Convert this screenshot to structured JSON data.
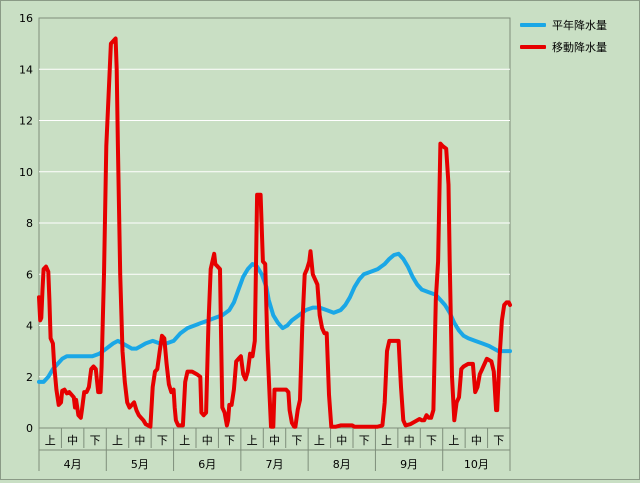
{
  "chart_data": {
    "type": "line",
    "title": "",
    "xlabel": "",
    "ylabel": "",
    "ylim": [
      0,
      16
    ],
    "yticks": [
      "0",
      "2",
      "4",
      "6",
      "8",
      "10",
      "12",
      "14",
      "16"
    ],
    "grid": true,
    "legend_position": "top-right",
    "months": [
      "4月",
      "5月",
      "6月",
      "7月",
      "8月",
      "9月",
      "10月"
    ],
    "decades": [
      "上",
      "中",
      "下"
    ],
    "series": [
      {
        "name": "平年降水量",
        "color": "#1aa7e6",
        "points": [
          [
            0,
            1.8
          ],
          [
            4,
            1.8
          ],
          [
            8,
            2
          ],
          [
            12,
            2.3
          ],
          [
            16,
            2.5
          ],
          [
            20,
            2.7
          ],
          [
            24,
            2.8
          ],
          [
            32,
            2.8
          ],
          [
            40,
            2.8
          ],
          [
            46,
            2.8
          ],
          [
            52,
            2.9
          ],
          [
            58,
            3.1
          ],
          [
            64,
            3.3
          ],
          [
            68,
            3.4
          ],
          [
            72,
            3.3
          ],
          [
            76,
            3.2
          ],
          [
            80,
            3.1
          ],
          [
            84,
            3.1
          ],
          [
            88,
            3.2
          ],
          [
            92,
            3.3
          ],
          [
            98,
            3.4
          ],
          [
            104,
            3.3
          ],
          [
            110,
            3.3
          ],
          [
            116,
            3.4
          ],
          [
            122,
            3.7
          ],
          [
            128,
            3.9
          ],
          [
            134,
            4
          ],
          [
            140,
            4.1
          ],
          [
            146,
            4.2
          ],
          [
            152,
            4.3
          ],
          [
            158,
            4.4
          ],
          [
            164,
            4.6
          ],
          [
            168,
            4.9
          ],
          [
            172,
            5.4
          ],
          [
            176,
            5.9
          ],
          [
            180,
            6.2
          ],
          [
            184,
            6.4
          ],
          [
            188,
            6.3
          ],
          [
            192,
            6
          ],
          [
            196,
            5.5
          ],
          [
            198,
            5
          ],
          [
            202,
            4.4
          ],
          [
            206,
            4.1
          ],
          [
            210,
            3.9
          ],
          [
            214,
            4
          ],
          [
            218,
            4.2
          ],
          [
            224,
            4.4
          ],
          [
            230,
            4.6
          ],
          [
            236,
            4.7
          ],
          [
            242,
            4.7
          ],
          [
            248,
            4.6
          ],
          [
            254,
            4.5
          ],
          [
            260,
            4.6
          ],
          [
            264,
            4.8
          ],
          [
            268,
            5.1
          ],
          [
            272,
            5.5
          ],
          [
            276,
            5.8
          ],
          [
            280,
            6
          ],
          [
            286,
            6.1
          ],
          [
            292,
            6.2
          ],
          [
            298,
            6.4
          ],
          [
            302,
            6.6
          ],
          [
            306,
            6.75
          ],
          [
            310,
            6.8
          ],
          [
            314,
            6.6
          ],
          [
            318,
            6.3
          ],
          [
            322,
            5.9
          ],
          [
            326,
            5.6
          ],
          [
            330,
            5.4
          ],
          [
            336,
            5.3
          ],
          [
            342,
            5.2
          ],
          [
            346,
            5
          ],
          [
            350,
            4.8
          ],
          [
            354,
            4.5
          ],
          [
            358,
            4.1
          ],
          [
            362,
            3.8
          ],
          [
            366,
            3.6
          ],
          [
            370,
            3.5
          ],
          [
            376,
            3.4
          ],
          [
            382,
            3.3
          ],
          [
            388,
            3.2
          ],
          [
            392,
            3.1
          ],
          [
            396,
            3
          ],
          [
            402,
            3
          ],
          [
            406,
            3
          ]
        ]
      },
      {
        "name": "移動降水量",
        "color": "#e60000",
        "points": [
          [
            0,
            5.1
          ],
          [
            1,
            4.2
          ],
          [
            2,
            4.3
          ],
          [
            3,
            5.4
          ],
          [
            4,
            6.2
          ],
          [
            6,
            6.3
          ],
          [
            8,
            6.1
          ],
          [
            9,
            5
          ],
          [
            10,
            3.5
          ],
          [
            12,
            3.3
          ],
          [
            13,
            2.5
          ],
          [
            15,
            1.5
          ],
          [
            17,
            0.9
          ],
          [
            19,
            1
          ],
          [
            20,
            1.45
          ],
          [
            22,
            1.5
          ],
          [
            24,
            1.35
          ],
          [
            26,
            1.4
          ],
          [
            28,
            1.3
          ],
          [
            30,
            1.2
          ],
          [
            31,
            0.8
          ],
          [
            32,
            1.1
          ],
          [
            34,
            0.5
          ],
          [
            36,
            0.4
          ],
          [
            37,
            0.7
          ],
          [
            39,
            1.4
          ],
          [
            41,
            1.4
          ],
          [
            43,
            1.6
          ],
          [
            45,
            2.3
          ],
          [
            47,
            2.4
          ],
          [
            49,
            2.3
          ],
          [
            51,
            1.4
          ],
          [
            53,
            1.4
          ],
          [
            54,
            2.4
          ],
          [
            56,
            6
          ],
          [
            58,
            11
          ],
          [
            60,
            13
          ],
          [
            62,
            15
          ],
          [
            64,
            15.1
          ],
          [
            66,
            15.2
          ],
          [
            67,
            14
          ],
          [
            68,
            11
          ],
          [
            70,
            6
          ],
          [
            72,
            3
          ],
          [
            74,
            1.8
          ],
          [
            76,
            1
          ],
          [
            78,
            0.8
          ],
          [
            80,
            0.9
          ],
          [
            82,
            1
          ],
          [
            84,
            0.7
          ],
          [
            86,
            0.5
          ],
          [
            88,
            0.4
          ],
          [
            90,
            0.3
          ],
          [
            92,
            0.15
          ],
          [
            94,
            0.1
          ],
          [
            96,
            0.05
          ],
          [
            98,
            1.6
          ],
          [
            100,
            2.2
          ],
          [
            102,
            2.3
          ],
          [
            104,
            3
          ],
          [
            106,
            3.6
          ],
          [
            108,
            3.5
          ],
          [
            110,
            2.5
          ],
          [
            112,
            1.7
          ],
          [
            114,
            1.4
          ],
          [
            116,
            1.5
          ],
          [
            117,
            0.8
          ],
          [
            118,
            0.3
          ],
          [
            120,
            0.1
          ],
          [
            124,
            0.1
          ],
          [
            126,
            1.8
          ],
          [
            128,
            2.2
          ],
          [
            132,
            2.2
          ],
          [
            136,
            2.1
          ],
          [
            139,
            2
          ],
          [
            140,
            0.6
          ],
          [
            142,
            0.5
          ],
          [
            144,
            0.6
          ],
          [
            146,
            4
          ],
          [
            148,
            6.2
          ],
          [
            150,
            6.6
          ],
          [
            151,
            6.8
          ],
          [
            152,
            6.4
          ],
          [
            156,
            6.2
          ],
          [
            157,
            3.5
          ],
          [
            158,
            0.8
          ],
          [
            160,
            0.6
          ],
          [
            162,
            0.1
          ],
          [
            163,
            0.3
          ],
          [
            164,
            0.9
          ],
          [
            166,
            0.9
          ],
          [
            168,
            1.5
          ],
          [
            170,
            2.6
          ],
          [
            172,
            2.7
          ],
          [
            174,
            2.8
          ],
          [
            176,
            2.1
          ],
          [
            178,
            1.9
          ],
          [
            180,
            2.2
          ],
          [
            182,
            2.9
          ],
          [
            184,
            2.8
          ],
          [
            186,
            3.4
          ],
          [
            188,
            9.1
          ],
          [
            191,
            9.1
          ],
          [
            193,
            6.5
          ],
          [
            195,
            6.4
          ],
          [
            197,
            3.1
          ],
          [
            199,
            1
          ],
          [
            200,
            0.05
          ],
          [
            202,
            0.05
          ],
          [
            203,
            1.5
          ],
          [
            205,
            1.5
          ],
          [
            208,
            1.5
          ],
          [
            213,
            1.5
          ],
          [
            215,
            1.4
          ],
          [
            216,
            0.7
          ],
          [
            218,
            0.2
          ],
          [
            220,
            0.05
          ],
          [
            221,
            0.05
          ],
          [
            223,
            0.7
          ],
          [
            225,
            1.1
          ],
          [
            227,
            4
          ],
          [
            229,
            6
          ],
          [
            231,
            6.2
          ],
          [
            233,
            6.5
          ],
          [
            234,
            6.9
          ],
          [
            236,
            6
          ],
          [
            238,
            5.8
          ],
          [
            240,
            5.6
          ],
          [
            242,
            4.4
          ],
          [
            244,
            3.9
          ],
          [
            246,
            3.7
          ],
          [
            248,
            3.7
          ],
          [
            250,
            1.3
          ],
          [
            252,
            0.05
          ],
          [
            256,
            0.05
          ],
          [
            260,
            0.1
          ],
          [
            264,
            0.1
          ],
          [
            268,
            0.1
          ],
          [
            270,
            0.1
          ],
          [
            272,
            0.05
          ],
          [
            276,
            0.05
          ],
          [
            280,
            0.05
          ],
          [
            286,
            0.05
          ],
          [
            292,
            0.05
          ],
          [
            296,
            0.1
          ],
          [
            298,
            1
          ],
          [
            300,
            3
          ],
          [
            302,
            3.4
          ],
          [
            306,
            3.4
          ],
          [
            310,
            3.4
          ],
          [
            312,
            1.6
          ],
          [
            314,
            0.3
          ],
          [
            316,
            0.1
          ],
          [
            320,
            0.15
          ],
          [
            324,
            0.25
          ],
          [
            328,
            0.35
          ],
          [
            330,
            0.3
          ],
          [
            332,
            0.3
          ],
          [
            334,
            0.5
          ],
          [
            336,
            0.4
          ],
          [
            338,
            0.4
          ],
          [
            340,
            0.7
          ],
          [
            342,
            5
          ],
          [
            344,
            6.5
          ],
          [
            346,
            11.1
          ],
          [
            348,
            11
          ],
          [
            351,
            10.9
          ],
          [
            353,
            9.5
          ],
          [
            354,
            6.5
          ],
          [
            356,
            2
          ],
          [
            358,
            0.3
          ],
          [
            360,
            1
          ],
          [
            362,
            1.2
          ],
          [
            364,
            2.3
          ],
          [
            366,
            2.4
          ],
          [
            370,
            2.5
          ],
          [
            374,
            2.5
          ],
          [
            376,
            1.4
          ],
          [
            378,
            1.6
          ],
          [
            380,
            2.1
          ],
          [
            382,
            2.3
          ],
          [
            384,
            2.5
          ],
          [
            386,
            2.7
          ],
          [
            390,
            2.6
          ],
          [
            392,
            2.2
          ],
          [
            394,
            0.7
          ],
          [
            395,
            0.7
          ],
          [
            397,
            2.8
          ],
          [
            399,
            4.2
          ],
          [
            401,
            4.8
          ],
          [
            403,
            4.9
          ],
          [
            405,
            4.9
          ],
          [
            406,
            4.8
          ]
        ]
      }
    ]
  }
}
